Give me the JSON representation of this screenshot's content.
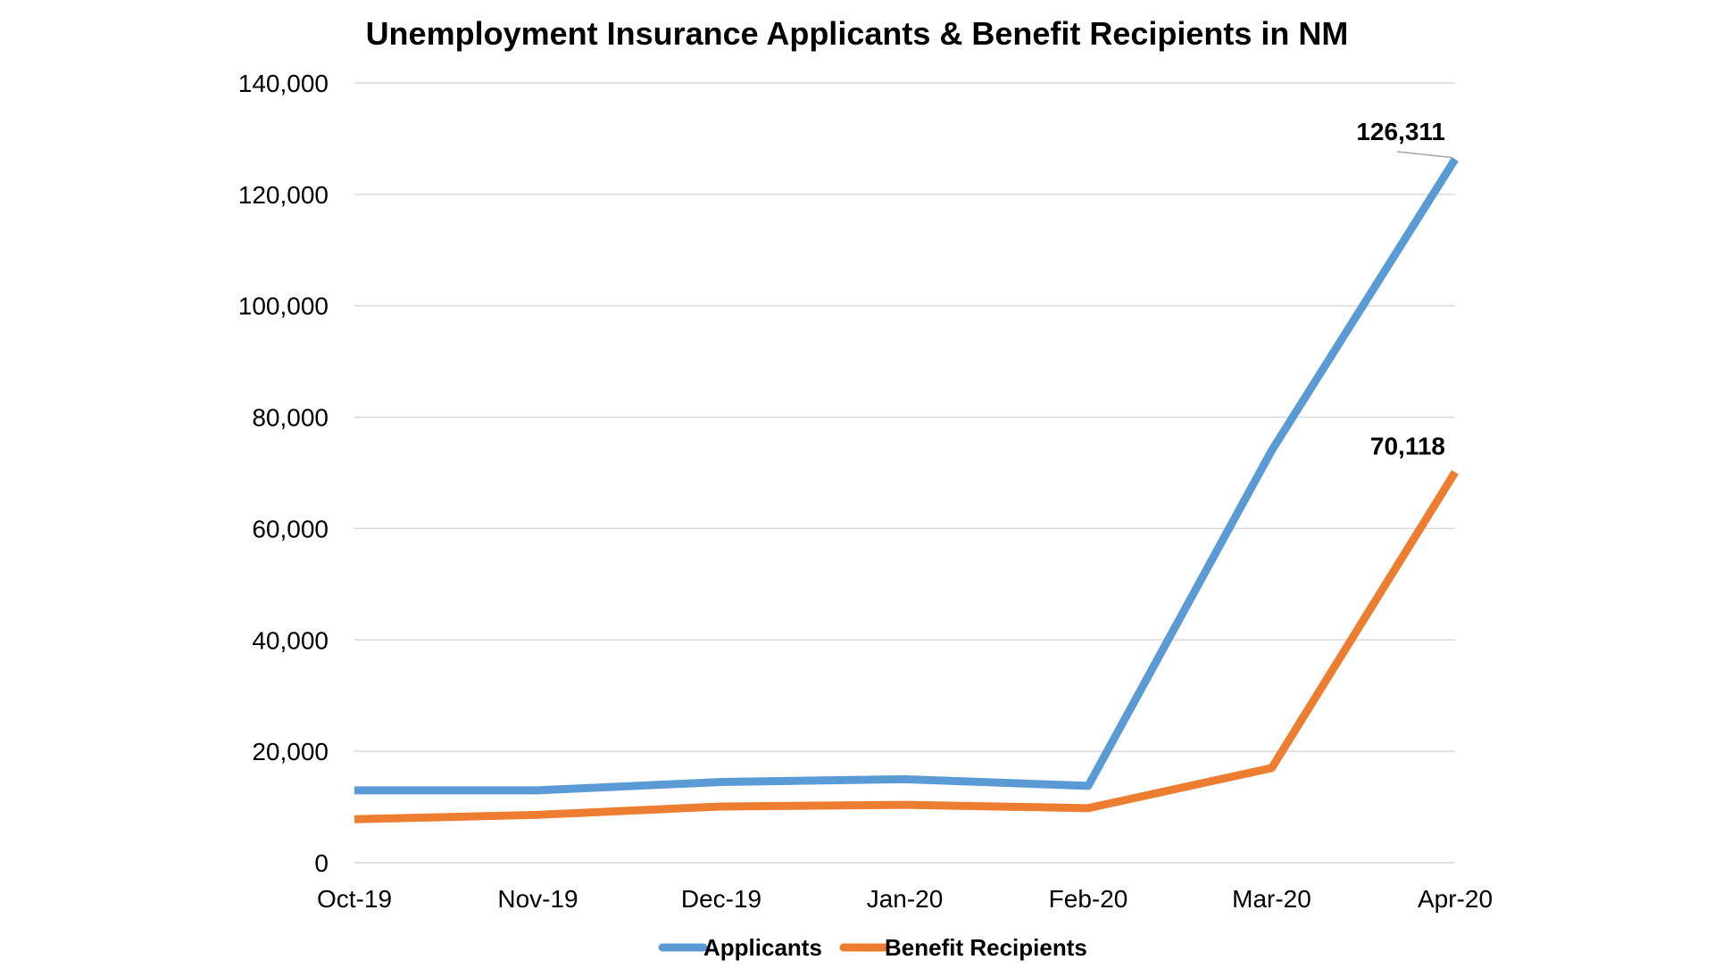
{
  "chart_data": {
    "type": "line",
    "title": "Unemployment Insurance Applicants & Benefit Recipients in NM",
    "xlabel": "",
    "ylabel": "",
    "categories": [
      "Oct-19",
      "Nov-19",
      "Dec-19",
      "Jan-20",
      "Feb-20",
      "Mar-20",
      "Apr-20"
    ],
    "ylim": [
      0,
      140000
    ],
    "yticks": [
      0,
      20000,
      40000,
      60000,
      80000,
      100000,
      120000,
      140000
    ],
    "ytick_labels": [
      "0",
      "20,000",
      "40,000",
      "60,000",
      "80,000",
      "100,000",
      "120,000",
      "140,000"
    ],
    "grid": true,
    "legend_position": "bottom",
    "series": [
      {
        "name": "Applicants",
        "color": "#5b9bd5",
        "values": [
          13000,
          13000,
          14500,
          15000,
          13800,
          74000,
          126311
        ],
        "data_labels": [
          {
            "index": 6,
            "text": "126,311"
          }
        ]
      },
      {
        "name": "Benefit Recipients",
        "color": "#ed7d31",
        "values": [
          7800,
          8600,
          10100,
          10400,
          9800,
          17000,
          70118
        ],
        "data_labels": [
          {
            "index": 6,
            "text": "70,118"
          }
        ]
      }
    ]
  }
}
